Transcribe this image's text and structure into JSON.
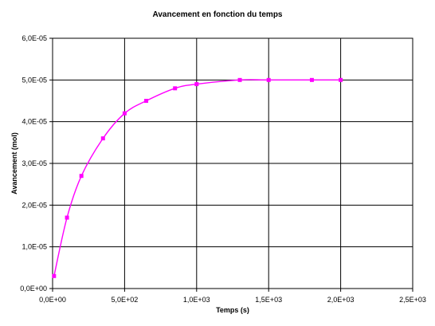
{
  "chart_data": {
    "type": "scatter",
    "title": "Avancement en fonction du temps",
    "xlabel": "Temps (s)",
    "ylabel": "Avancement (mol)",
    "xlim": [
      0,
      2500
    ],
    "ylim": [
      0,
      6e-05
    ],
    "x_ticks": [
      0,
      500,
      1000,
      1500,
      2000,
      2500
    ],
    "y_ticks": [
      0,
      1e-05,
      2e-05,
      3e-05,
      4e-05,
      5e-05,
      6e-05
    ],
    "x_tick_labels": [
      "0,0E+00",
      "5,0E+02",
      "1,0E+03",
      "1,5E+03",
      "2,0E+03",
      "2,5E+03"
    ],
    "y_tick_labels": [
      "0,0E+00",
      "1,0E-05",
      "2,0E-05",
      "3,0E-05",
      "4,0E-05",
      "5,0E-05",
      "6,0E-05"
    ],
    "grid": true,
    "smoothed_line": true,
    "series": [
      {
        "color": "#ff00ff",
        "x": [
          10,
          100,
          200,
          350,
          500,
          650,
          850,
          1000,
          1300,
          1500,
          1800,
          2000
        ],
        "y": [
          3e-06,
          1.7e-05,
          2.7e-05,
          3.6e-05,
          4.2e-05,
          4.5e-05,
          4.8e-05,
          4.9e-05,
          5e-05,
          5e-05,
          5e-05,
          5e-05
        ]
      }
    ]
  }
}
